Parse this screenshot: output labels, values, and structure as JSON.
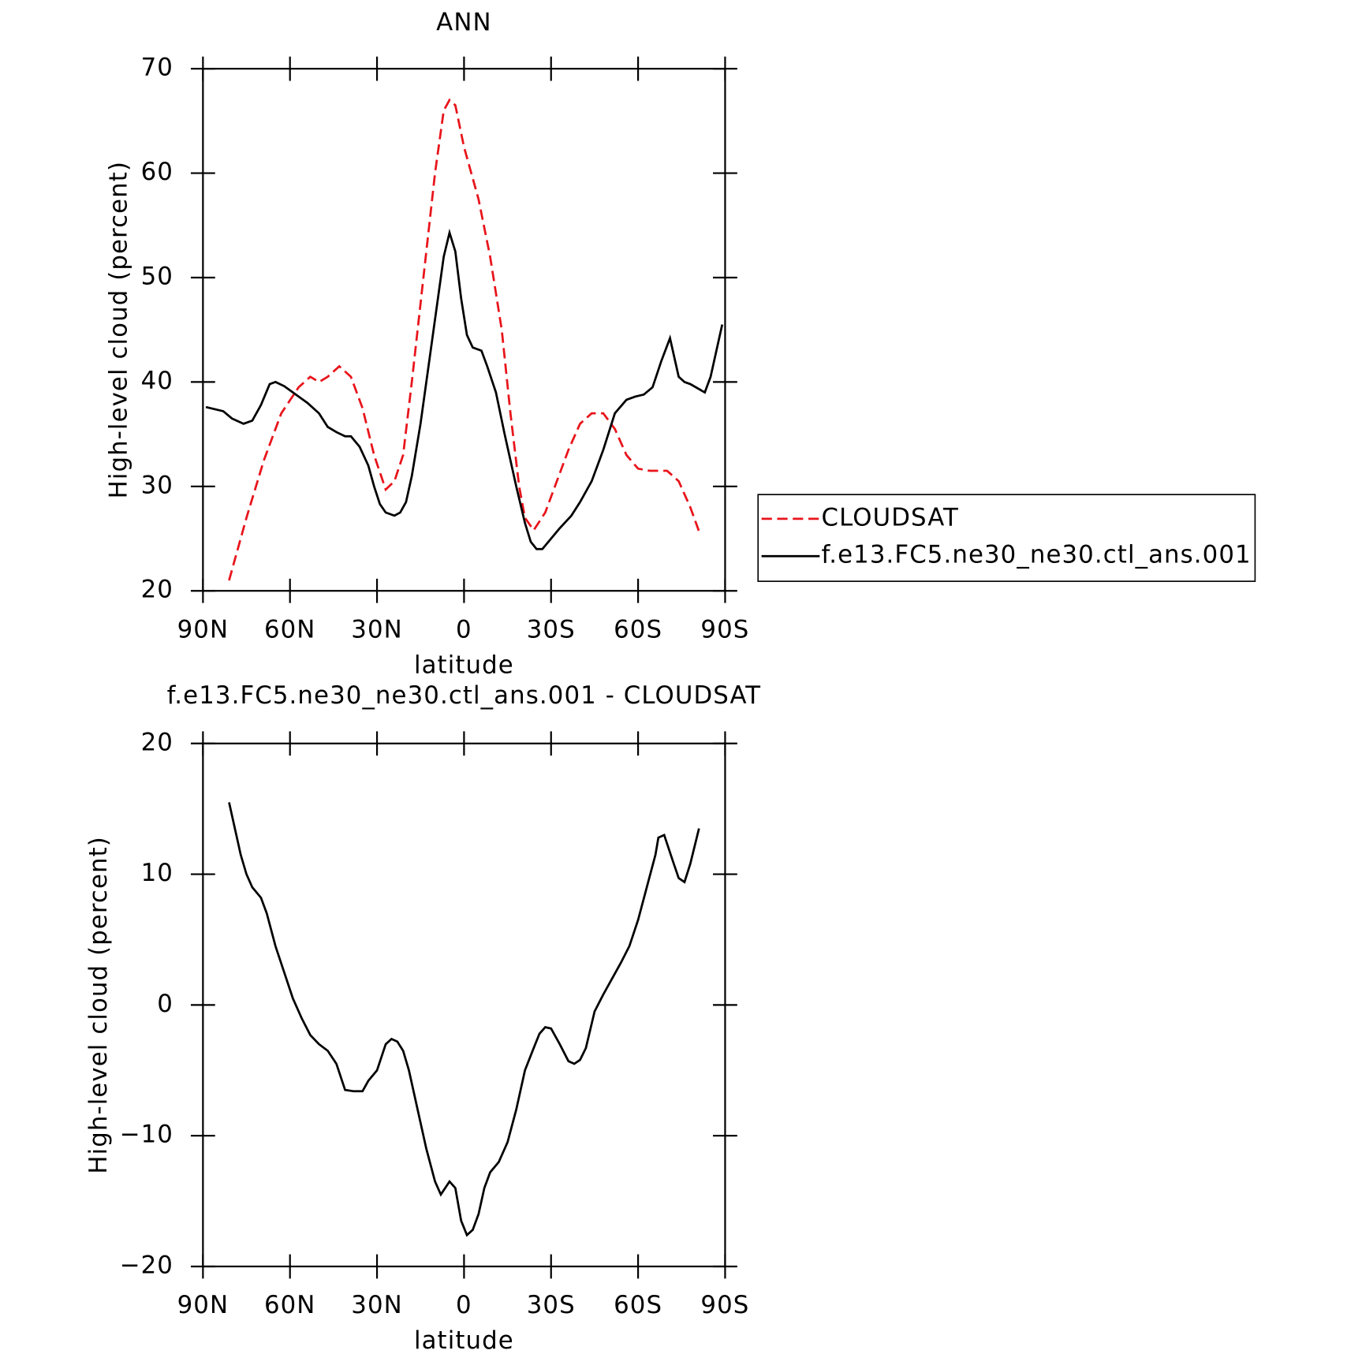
{
  "chart_data": [
    {
      "type": "line",
      "title": "ANN",
      "xlabel": "latitude",
      "ylabel": "High-level cloud (percent)",
      "xlim": [
        90,
        -90
      ],
      "xticks": [
        {
          "value": 90,
          "label": "90N"
        },
        {
          "value": 60,
          "label": "60N"
        },
        {
          "value": 30,
          "label": "30N"
        },
        0,
        {
          "value": -30,
          "label": "30S"
        },
        {
          "value": -60,
          "label": "60S"
        },
        {
          "value": -90,
          "label": "90S"
        }
      ],
      "ylim": [
        20,
        70
      ],
      "yticks": [
        20,
        30,
        40,
        50,
        60,
        70
      ],
      "legend": "right",
      "series": [
        {
          "name": "CLOUDSAT",
          "color": "#e8141b",
          "style": "dashed",
          "x": [
            81,
            75,
            69,
            63,
            57,
            53,
            50,
            47,
            43,
            39,
            35,
            31,
            27,
            24,
            21,
            18,
            14,
            10,
            7,
            5,
            3,
            0,
            -5,
            -9,
            -13,
            -16,
            -19,
            -21,
            -24,
            -28,
            -32,
            -36,
            -40,
            -44,
            -48,
            -52,
            -56,
            -60,
            -64,
            -70,
            -74,
            -78,
            -81
          ],
          "values": [
            21,
            27,
            32.5,
            37,
            39.5,
            40.5,
            40,
            40.5,
            41.5,
            40.5,
            37.5,
            33,
            29.7,
            30.5,
            33,
            40,
            50,
            60,
            66,
            67,
            66.5,
            62.5,
            57.5,
            52,
            45,
            37,
            30,
            27,
            25.8,
            27.5,
            30.5,
            33.5,
            36,
            37,
            37,
            35.5,
            33,
            31.7,
            31.5,
            31.5,
            30.5,
            28,
            25.7
          ]
        },
        {
          "name": "f.e13.FC5.ne30_ne30.ctl_ans.001",
          "color": "#000000",
          "style": "solid",
          "x": [
            89,
            86,
            83,
            80,
            76,
            73,
            70,
            67,
            65,
            62,
            58,
            54,
            50,
            47,
            44,
            41,
            39,
            36,
            33,
            31,
            29,
            27,
            24,
            22,
            20,
            18,
            15,
            12,
            9,
            7,
            5,
            3,
            1,
            -1,
            -3,
            -6,
            -8,
            -11,
            -14,
            -18,
            -21,
            -23,
            -25,
            -27,
            -30,
            -33,
            -37,
            -40,
            -44,
            -48,
            -52,
            -56,
            -59,
            -62,
            -65,
            -68,
            -71,
            -74,
            -76,
            -78,
            -83,
            -85,
            -89
          ],
          "values": [
            37.6,
            37.4,
            37.2,
            36.5,
            36,
            36.3,
            37.8,
            39.8,
            40,
            39.6,
            38.8,
            38,
            37,
            35.7,
            35.2,
            34.8,
            34.8,
            33.8,
            32,
            30,
            28.3,
            27.5,
            27.2,
            27.5,
            28.5,
            31,
            36,
            42,
            48,
            52,
            54.3,
            52.5,
            48,
            44.5,
            43.3,
            43,
            41.5,
            39,
            35,
            30,
            26.5,
            24.7,
            24,
            24,
            25,
            26,
            27.2,
            28.5,
            30.5,
            33.5,
            37,
            38.3,
            38.6,
            38.8,
            39.5,
            42,
            44.2,
            40.5,
            40,
            39.8,
            39,
            40.5,
            45.5
          ]
        }
      ]
    },
    {
      "type": "line",
      "title": "f.e13.FC5.ne30_ne30.ctl_ans.001 - CLOUDSAT",
      "xlabel": "latitude",
      "ylabel": "High-level cloud (percent)",
      "xlim": [
        90,
        -90
      ],
      "xticks": [
        {
          "value": 90,
          "label": "90N"
        },
        {
          "value": 60,
          "label": "60N"
        },
        {
          "value": 30,
          "label": "30N"
        },
        0,
        {
          "value": -30,
          "label": "30S"
        },
        {
          "value": -60,
          "label": "60S"
        },
        {
          "value": -90,
          "label": "90S"
        }
      ],
      "ylim": [
        -20,
        20
      ],
      "yticks": [
        {
          "value": -20,
          "label": "−20"
        },
        {
          "value": -10,
          "label": "−10"
        },
        0,
        10,
        20
      ],
      "color": "#000000",
      "x": [
        81,
        79,
        77,
        75,
        73,
        70,
        68,
        65,
        62,
        59,
        56,
        53,
        50,
        47,
        44,
        41,
        38,
        35,
        33,
        30,
        27,
        25,
        23,
        21,
        19,
        16,
        13,
        10,
        8,
        5,
        3,
        1,
        -1,
        -3,
        -5,
        -7,
        -9,
        -12,
        -15,
        -18,
        -21,
        -24,
        -26,
        -28,
        -30,
        -33,
        -36,
        -38,
        -40,
        -42,
        -45,
        -48,
        -51,
        -54,
        -57,
        -60,
        -63,
        -66,
        -67,
        -69,
        -72,
        -74,
        -76,
        -78,
        -81
      ],
      "values": [
        15.5,
        13.5,
        11.5,
        10,
        9,
        8.2,
        7,
        4.5,
        2.5,
        0.5,
        -1,
        -2.3,
        -3,
        -3.5,
        -4.5,
        -6.5,
        -6.6,
        -6.6,
        -5.8,
        -5,
        -3,
        -2.6,
        -2.8,
        -3.5,
        -5,
        -8,
        -11,
        -13.5,
        -14.5,
        -13.5,
        -14,
        -16.5,
        -17.6,
        -17.2,
        -16,
        -14,
        -12.8,
        -12,
        -10.5,
        -8,
        -5,
        -3.3,
        -2.2,
        -1.7,
        -1.8,
        -3,
        -4.3,
        -4.5,
        -4.2,
        -3.3,
        -0.5,
        0.8,
        2,
        3.2,
        4.5,
        6.5,
        9,
        11.5,
        12.8,
        13,
        11,
        9.7,
        9.4,
        10.8,
        13.5
      ]
    }
  ]
}
